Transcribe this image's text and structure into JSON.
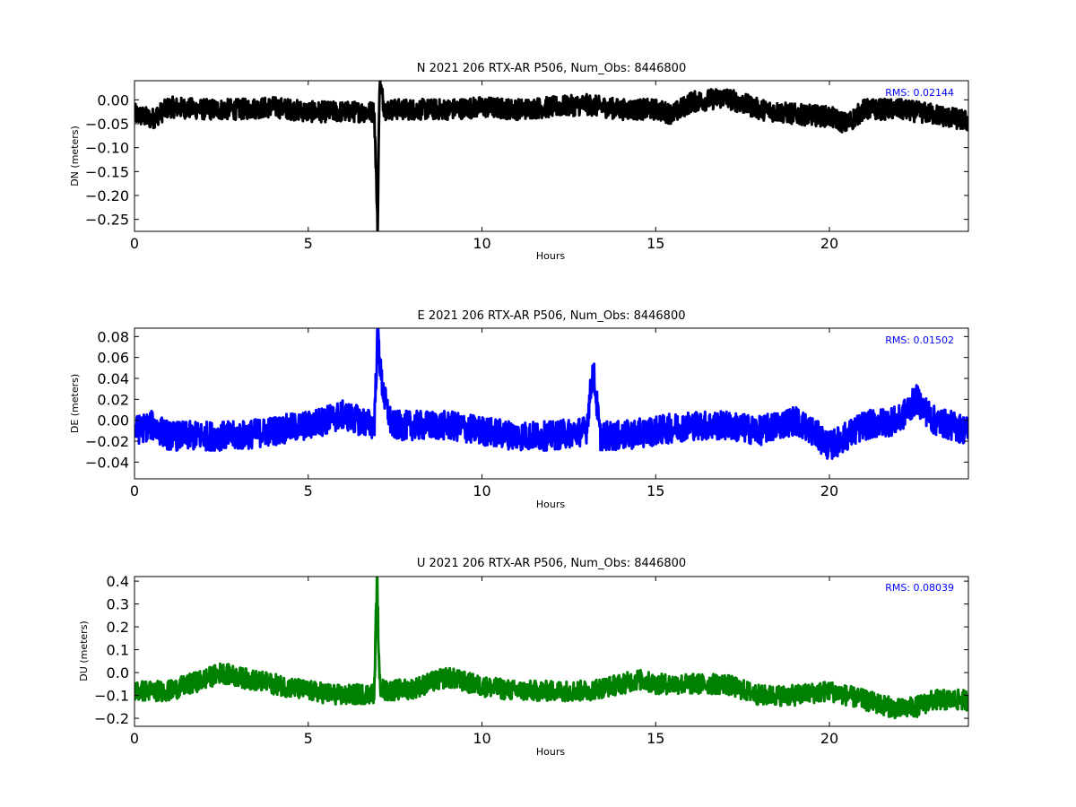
{
  "chart_data": [
    {
      "type": "line",
      "title": "N 2021 206 RTX-AR  P506, Num_Obs: 8446800",
      "xlabel": "Hours",
      "ylabel": "DN (meters)",
      "xlim": [
        0,
        24
      ],
      "ylim": [
        -0.275,
        0.04
      ],
      "xticks": [
        0,
        5,
        10,
        15,
        20
      ],
      "xtick_labels": [
        "0",
        "5",
        "10",
        "15",
        "20"
      ],
      "yticks": [
        0.0,
        -0.05,
        -0.1,
        -0.15,
        -0.2,
        -0.25
      ],
      "ytick_labels": [
        "0.00",
        "−0.05",
        "−0.10",
        "−0.15",
        "−0.20",
        "−0.25"
      ],
      "color": "#000000",
      "annotation": "RMS:  0.02144",
      "annotation_color": "#0000ff",
      "grid": false,
      "series": [
        {
          "x": [
            0,
            0.5,
            1,
            2,
            3,
            4,
            5,
            6,
            6.9,
            7.0,
            7.05,
            7.2,
            8,
            9,
            10,
            11,
            12,
            13,
            14,
            15,
            15.5,
            16,
            17,
            18,
            19,
            20,
            20.5,
            21,
            22,
            23,
            24
          ],
          "y": [
            -0.03,
            -0.04,
            -0.015,
            -0.02,
            -0.02,
            -0.015,
            -0.025,
            -0.025,
            -0.025,
            -0.27,
            0.04,
            -0.02,
            -0.02,
            -0.02,
            -0.015,
            -0.02,
            -0.015,
            -0.01,
            -0.02,
            -0.02,
            -0.03,
            -0.005,
            0.005,
            -0.02,
            -0.03,
            -0.035,
            -0.05,
            -0.02,
            -0.02,
            -0.03,
            -0.045
          ],
          "spread": 0.022
        }
      ]
    },
    {
      "type": "line",
      "title": "E 2021 206 RTX-AR  P506, Num_Obs: 8446800",
      "xlabel": "Hours",
      "ylabel": "DE (meters)",
      "xlim": [
        0,
        24
      ],
      "ylim": [
        -0.056,
        0.088
      ],
      "xticks": [
        0,
        5,
        10,
        15,
        20
      ],
      "xtick_labels": [
        "0",
        "5",
        "10",
        "15",
        "20"
      ],
      "yticks": [
        0.08,
        0.06,
        0.04,
        0.02,
        0.0,
        -0.02,
        -0.04
      ],
      "ytick_labels": [
        "0.08",
        "0.06",
        "0.04",
        "0.02",
        "0.00",
        "−0.02",
        "−0.04"
      ],
      "color": "#0000ff",
      "annotation": "RMS:  0.01502",
      "annotation_color": "#0000ff",
      "grid": false,
      "series": [
        {
          "x": [
            0,
            0.5,
            1,
            2,
            3,
            4,
            5,
            5.5,
            6,
            6.9,
            7.0,
            7.1,
            7.2,
            7.4,
            8,
            9,
            10,
            11,
            12,
            13,
            13.2,
            13.4,
            14,
            15,
            16,
            17,
            18,
            19,
            19.5,
            20,
            20.5,
            21,
            22,
            22.5,
            23,
            24
          ],
          "y": [
            -0.01,
            -0.005,
            -0.015,
            -0.015,
            -0.015,
            -0.01,
            -0.005,
            0.0,
            0.005,
            -0.005,
            0.085,
            0.04,
            0.02,
            -0.005,
            -0.005,
            -0.005,
            -0.01,
            -0.015,
            -0.015,
            -0.01,
            0.05,
            -0.015,
            -0.015,
            -0.01,
            -0.005,
            -0.005,
            -0.01,
            0.0,
            -0.01,
            -0.025,
            -0.015,
            -0.005,
            0.0,
            0.02,
            0.0,
            -0.01
          ],
          "spread": 0.014
        }
      ]
    },
    {
      "type": "line",
      "title": "U 2021 206 RTX-AR  P506, Num_Obs: 8446800",
      "xlabel": "Hours",
      "ylabel": "DU (meters)",
      "xlim": [
        0,
        24
      ],
      "ylim": [
        -0.235,
        0.42
      ],
      "xticks": [
        0,
        5,
        10,
        15,
        20
      ],
      "xtick_labels": [
        "0",
        "5",
        "10",
        "15",
        "20"
      ],
      "yticks": [
        0.4,
        0.3,
        0.2,
        0.1,
        0.0,
        -0.1,
        -0.2
      ],
      "ytick_labels": [
        "0.4",
        "0.3",
        "0.2",
        "0.1",
        "0.0",
        "−0.1",
        "−0.2"
      ],
      "color": "#008000",
      "annotation": "RMS:  0.08039",
      "annotation_color": "#0000ff",
      "grid": false,
      "series": [
        {
          "x": [
            0,
            1,
            2,
            2.5,
            3,
            4,
            5,
            6,
            6.9,
            6.98,
            7.05,
            7.2,
            8,
            9,
            10,
            11,
            12,
            13,
            14,
            14.5,
            15,
            16,
            17,
            18,
            19,
            20,
            21,
            22,
            22.5,
            23,
            24
          ],
          "y": [
            -0.08,
            -0.08,
            -0.03,
            0.0,
            -0.02,
            -0.05,
            -0.08,
            -0.1,
            -0.09,
            0.42,
            -0.05,
            -0.08,
            -0.07,
            -0.02,
            -0.06,
            -0.08,
            -0.08,
            -0.08,
            -0.05,
            -0.03,
            -0.05,
            -0.05,
            -0.05,
            -0.1,
            -0.1,
            -0.08,
            -0.12,
            -0.16,
            -0.15,
            -0.12,
            -0.12
          ],
          "spread": 0.045
        }
      ]
    }
  ]
}
